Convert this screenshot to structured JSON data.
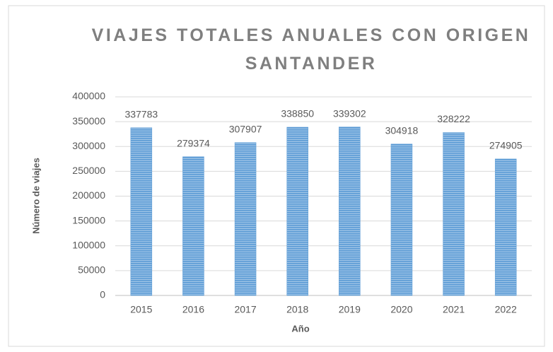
{
  "chart_data": {
    "type": "bar",
    "title": "VIAJES TOTALES ANUALES CON ORIGEN SANTANDER",
    "x_label": "Año",
    "y_label": "Número de viajes",
    "categories": [
      "2015",
      "2016",
      "2017",
      "2018",
      "2019",
      "2020",
      "2021",
      "2022"
    ],
    "values": [
      337783,
      279374,
      307907,
      338850,
      339302,
      304918,
      328222,
      274905
    ],
    "color": "#5b9bd5",
    "ylim": [
      0,
      400000
    ],
    "yticks": [
      0,
      50000,
      100000,
      150000,
      200000,
      250000,
      300000,
      350000,
      400000
    ],
    "grid": true
  }
}
